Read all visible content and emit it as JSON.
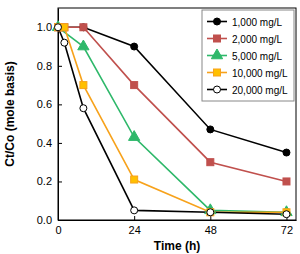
{
  "chart_data": {
    "type": "line",
    "x_label": "Time (h)",
    "y_label": "Ct/Co (mole basis)",
    "xlim": [
      0,
      75
    ],
    "xticks": [
      0,
      24,
      48,
      72
    ],
    "ylim": [
      0,
      1.1
    ],
    "yticks": [
      {
        "value": 0,
        "label": "0.0"
      },
      {
        "value": 0.2,
        "label": "0.2"
      },
      {
        "value": 0.4,
        "label": "0.4"
      },
      {
        "value": 0.6,
        "label": "0.6"
      },
      {
        "value": 0.8,
        "label": "0.8"
      },
      {
        "value": 1.0,
        "label": "1.0"
      }
    ],
    "grid": false,
    "legend": "upper right",
    "series": [
      {
        "name": "1,000 mg/L",
        "color": "#000000",
        "marker": "circle",
        "x": [
          0,
          8,
          24,
          48,
          72
        ],
        "values": [
          1.0,
          1.0,
          0.9,
          0.47,
          0.35
        ]
      },
      {
        "name": "2,000 mg/L",
        "color": "#c0504d",
        "marker": "square",
        "x": [
          0,
          2,
          8,
          24,
          48,
          72
        ],
        "values": [
          1.0,
          1.0,
          1.0,
          0.7,
          0.3,
          0.2
        ]
      },
      {
        "name": "5,000 mg/L",
        "color": "#2eb86a",
        "marker": "triangle",
        "x": [
          0,
          8,
          24,
          48,
          72
        ],
        "values": [
          1.0,
          0.9,
          0.43,
          0.05,
          0.04
        ]
      },
      {
        "name": "10,000 mg/L",
        "color": "#f7a21b",
        "marker": "square",
        "x": [
          0,
          2,
          8,
          24,
          48,
          72
        ],
        "values": [
          1.0,
          1.0,
          0.7,
          0.21,
          0.04,
          0.04
        ]
      },
      {
        "name": "20,000 mg/L",
        "color": "#000000",
        "marker": "circle-open",
        "x": [
          0,
          2,
          8,
          24,
          48,
          72
        ],
        "values": [
          1.0,
          0.92,
          0.58,
          0.05,
          0.04,
          0.03
        ]
      }
    ]
  }
}
